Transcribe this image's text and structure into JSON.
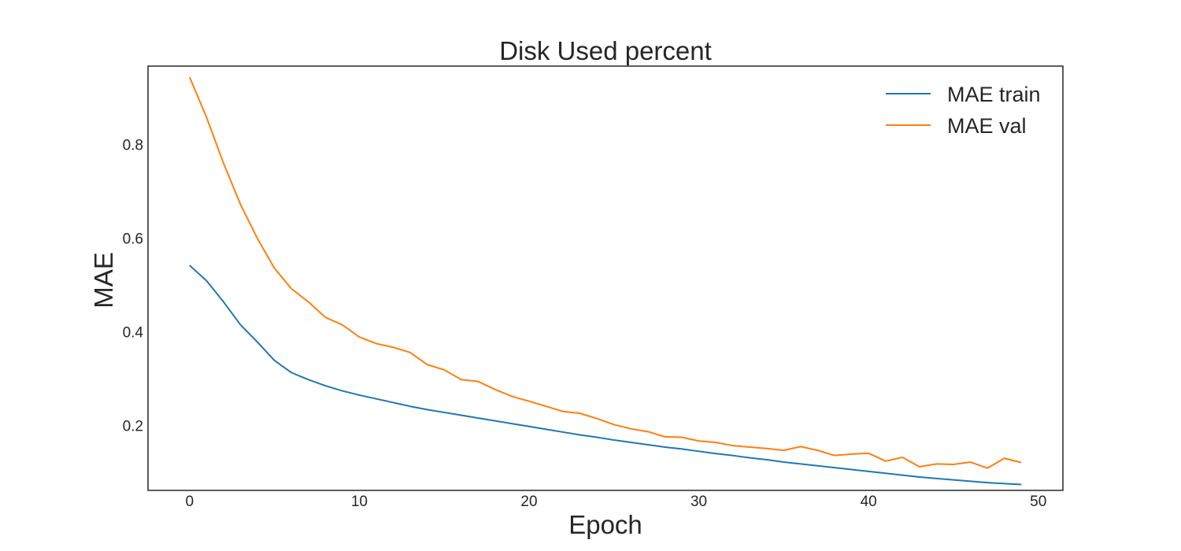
{
  "chart_data": {
    "type": "line",
    "title": "Disk Used percent",
    "xlabel": "Epoch",
    "ylabel": "MAE",
    "xlim": [
      -2.45,
      51.45
    ],
    "ylim": [
      0.0615,
      0.9675
    ],
    "xticks": [
      0,
      10,
      20,
      30,
      40,
      50
    ],
    "yticks": [
      0.2,
      0.4,
      0.6,
      0.8
    ],
    "ytick_labels": [
      "0.2",
      "0.4",
      "0.6",
      "0.8"
    ],
    "grid": false,
    "legend_position": "upper-right",
    "x": [
      0,
      1,
      2,
      3,
      4,
      5,
      6,
      7,
      8,
      9,
      10,
      11,
      12,
      13,
      14,
      15,
      16,
      17,
      18,
      19,
      20,
      21,
      22,
      23,
      24,
      25,
      26,
      27,
      28,
      29,
      30,
      31,
      32,
      33,
      34,
      35,
      36,
      37,
      38,
      39,
      40,
      41,
      42,
      43,
      44,
      45,
      46,
      47,
      48,
      49
    ],
    "series": [
      {
        "name": "MAE train",
        "color": "#1f77b4",
        "values": [
          0.542,
          0.509,
          0.464,
          0.415,
          0.378,
          0.339,
          0.313,
          0.298,
          0.285,
          0.274,
          0.265,
          0.257,
          0.249,
          0.241,
          0.234,
          0.228,
          0.222,
          0.216,
          0.21,
          0.204,
          0.198,
          0.192,
          0.186,
          0.18,
          0.175,
          0.169,
          0.164,
          0.159,
          0.154,
          0.15,
          0.145,
          0.14,
          0.136,
          0.131,
          0.127,
          0.122,
          0.118,
          0.114,
          0.11,
          0.106,
          0.102,
          0.098,
          0.094,
          0.09,
          0.087,
          0.084,
          0.081,
          0.078,
          0.076,
          0.074
        ]
      },
      {
        "name": "MAE val",
        "color": "#ff7f0e",
        "values": [
          0.944,
          0.858,
          0.76,
          0.672,
          0.599,
          0.536,
          0.492,
          0.464,
          0.431,
          0.415,
          0.389,
          0.375,
          0.367,
          0.356,
          0.33,
          0.319,
          0.298,
          0.294,
          0.277,
          0.262,
          0.252,
          0.241,
          0.23,
          0.226,
          0.215,
          0.202,
          0.193,
          0.187,
          0.176,
          0.175,
          0.167,
          0.164,
          0.157,
          0.154,
          0.151,
          0.147,
          0.155,
          0.147,
          0.136,
          0.139,
          0.141,
          0.124,
          0.132,
          0.112,
          0.118,
          0.117,
          0.122,
          0.109,
          0.13,
          0.121
        ]
      }
    ]
  }
}
